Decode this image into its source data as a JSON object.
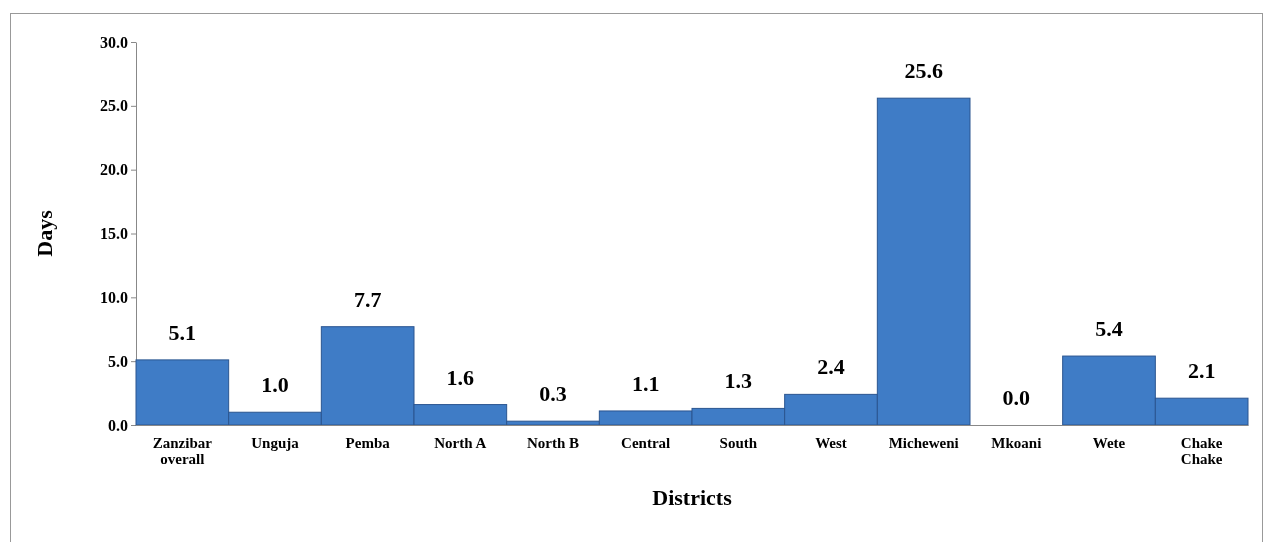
{
  "chart_data": {
    "type": "bar",
    "xlabel": "Districts",
    "ylabel": "Days",
    "categories": [
      "Zanzibar overall",
      "Unguja",
      "Pemba",
      "North A",
      "North B",
      "Central",
      "South",
      "West",
      "Micheweni",
      "Mkoani",
      "Wete",
      "Chake Chake"
    ],
    "values": [
      5.1,
      1.0,
      7.7,
      1.6,
      0.3,
      1.1,
      1.3,
      2.4,
      25.6,
      0.0,
      5.4,
      2.1
    ],
    "color": "#3f7cc6",
    "ylim": [
      0,
      30
    ],
    "yticks": [
      {
        "value": 0,
        "label": "0.0"
      },
      {
        "value": 5,
        "label": "5.0"
      },
      {
        "value": 10,
        "label": "10.0"
      },
      {
        "value": 15,
        "label": "15.0"
      },
      {
        "value": 20,
        "label": "20.0"
      },
      {
        "value": 25,
        "label": "25.0"
      },
      {
        "value": 30,
        "label": "30.0"
      }
    ],
    "value_labels": [
      "5.1",
      "1.0",
      "7.7",
      "1.6",
      "0.3",
      "1.1",
      "1.3",
      "2.4",
      "25.6",
      "0.0",
      "5.4",
      "2.1"
    ],
    "grid": false
  }
}
